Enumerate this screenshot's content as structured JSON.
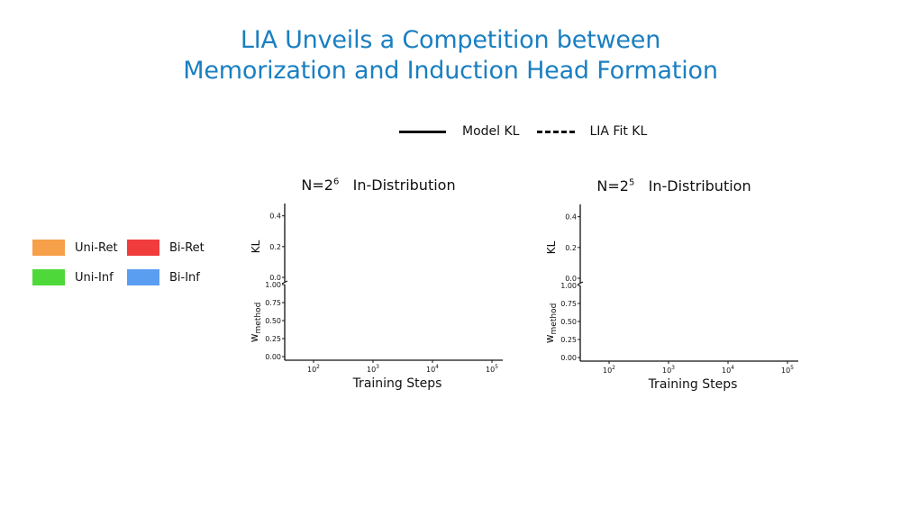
{
  "title_line1": "LIA Unveils a Competition between",
  "title_line2": "Memorization and Induction Head Formation",
  "line_legend": {
    "solid_label": "Model KL",
    "dashed_label": "LIA Fit KL"
  },
  "color_legend": [
    {
      "label": "Uni-Ret",
      "color": "#f6a04a"
    },
    {
      "label": "Bi-Ret",
      "color": "#f03c3c"
    },
    {
      "label": "Uni-Inf",
      "color": "#4fd83a"
    },
    {
      "label": "Bi-Inf",
      "color": "#5a9ef2"
    }
  ],
  "chart_data": [
    {
      "type": "line",
      "title_prefix": "N=2",
      "title_exponent": "6",
      "title_suffix": "In-Distribution",
      "xlabel": "Training Steps",
      "x_scale": "log",
      "x_ticks": [
        {
          "base": "10",
          "exp": "2"
        },
        {
          "base": "10",
          "exp": "3"
        },
        {
          "base": "10",
          "exp": "4"
        },
        {
          "base": "10",
          "exp": "5"
        }
      ],
      "top_ylabel": "KL",
      "top_yticks": [
        "0.0",
        "0.2",
        "0.4"
      ],
      "bottom_ylabel_main": "w",
      "bottom_ylabel_sub": "method",
      "bottom_yticks": [
        "0.00",
        "0.25",
        "0.50",
        "0.75",
        "1.00"
      ],
      "series": []
    },
    {
      "type": "line",
      "title_prefix": "N=2",
      "title_exponent": "5",
      "title_suffix": "In-Distribution",
      "xlabel": "Training Steps",
      "x_scale": "log",
      "x_ticks": [
        {
          "base": "10",
          "exp": "2"
        },
        {
          "base": "10",
          "exp": "3"
        },
        {
          "base": "10",
          "exp": "4"
        },
        {
          "base": "10",
          "exp": "5"
        }
      ],
      "top_ylabel": "KL",
      "top_yticks": [
        "0.0",
        "0.2",
        "0.4"
      ],
      "bottom_ylabel_main": "w",
      "bottom_ylabel_sub": "method",
      "bottom_yticks": [
        "0.00",
        "0.25",
        "0.50",
        "0.75",
        "1.00"
      ],
      "series": []
    }
  ]
}
